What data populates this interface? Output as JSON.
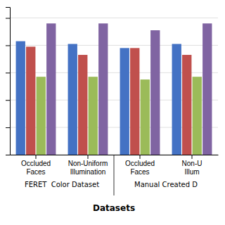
{
  "chart_data": {
    "type": "bar",
    "categories": [
      "Occluded\nFaces",
      "Non-Uniform\nIllumination",
      "Occluded\nFaces",
      "Non-U\nIllum"
    ],
    "series": [
      {
        "color": "#4472C4",
        "values": [
          0.83,
          0.81,
          0.78,
          0.81
        ]
      },
      {
        "color": "#C0504D",
        "values": [
          0.79,
          0.73,
          0.78,
          0.73
        ]
      },
      {
        "color": "#9BBB59",
        "values": [
          0.57,
          0.57,
          0.55,
          0.57
        ]
      },
      {
        "color": "#8064A2",
        "values": [
          0.96,
          0.96,
          0.91,
          0.96
        ]
      }
    ],
    "x_label": "Datasets",
    "annotations": [
      "FERET  Color Dataset",
      "Manual Created D"
    ],
    "ylim": [
      0,
      1.08
    ],
    "yticks": [
      0.0,
      0.2,
      0.4,
      0.6,
      0.8,
      1.0
    ],
    "grid": true,
    "tick_labels": "x"
  }
}
